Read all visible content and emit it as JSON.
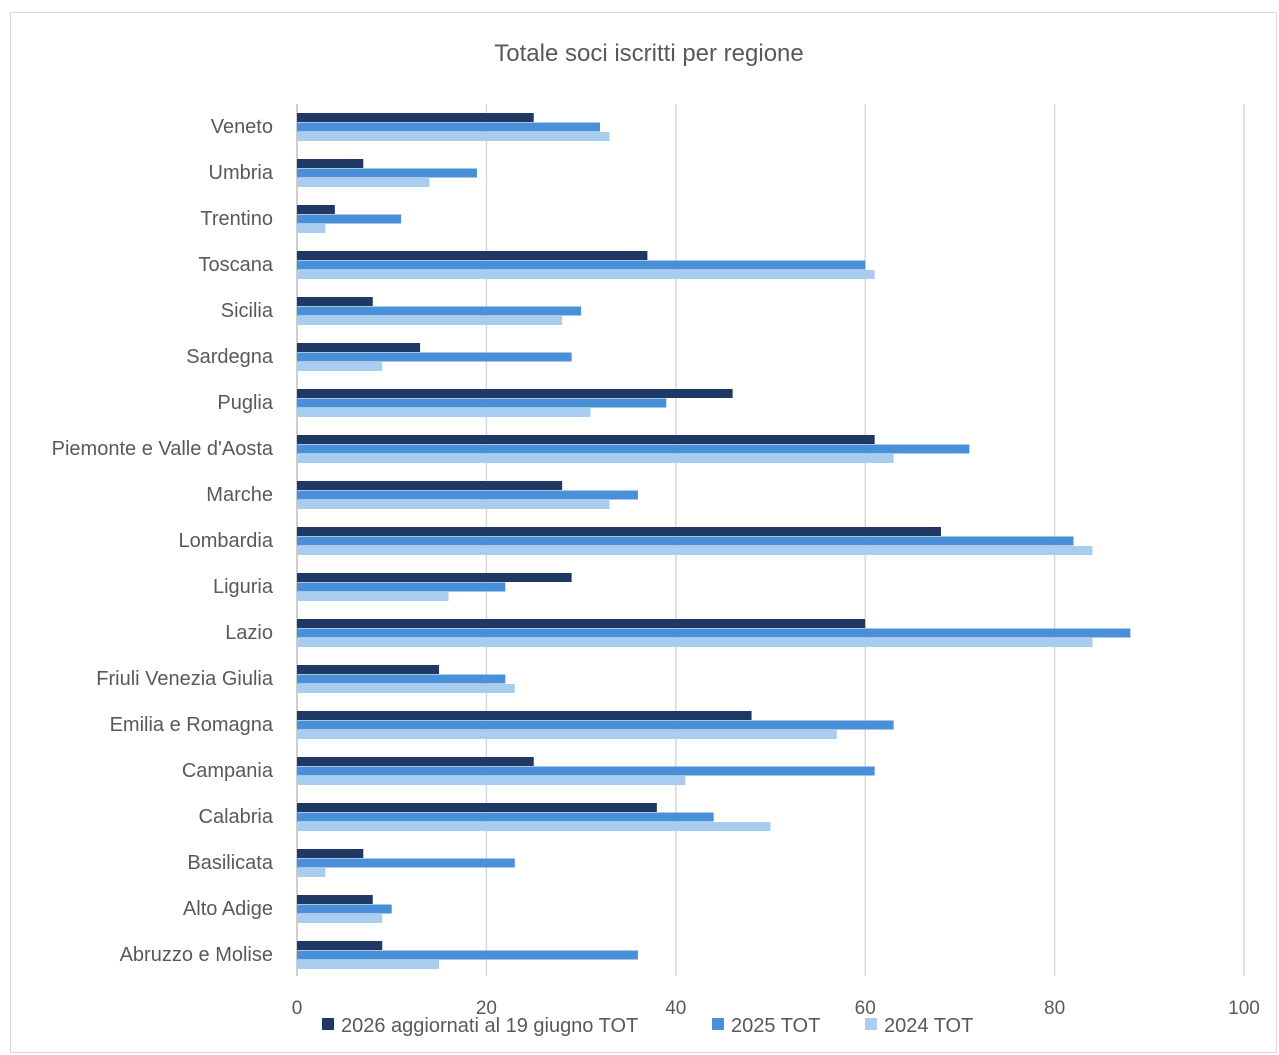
{
  "chart_data": {
    "type": "bar",
    "orientation": "horizontal",
    "title": "Totale soci iscritti per regione",
    "xlabel": "",
    "ylabel": "",
    "xlim": [
      0,
      100
    ],
    "xticks": [
      "0",
      "20",
      "40",
      "60",
      "80",
      "100"
    ],
    "grid": true,
    "legend_position": "bottom",
    "categories": [
      "Veneto",
      "Umbria",
      "Trentino",
      "Toscana",
      "Sicilia",
      "Sardegna",
      "Puglia",
      "Piemonte e Valle d'Aosta",
      "Marche",
      "Lombardia",
      "Liguria",
      "Lazio",
      "Friuli Venezia Giulia",
      "Emilia e Romagna",
      "Campania",
      "Calabria",
      "Basilicata",
      "Alto Adige",
      "Abruzzo e Molise"
    ],
    "series": [
      {
        "name": "2026 aggiornati al 19 giugno TOT",
        "color": "#1f3864",
        "values": [
          25,
          7,
          4,
          37,
          8,
          13,
          46,
          61,
          28,
          68,
          29,
          60,
          15,
          48,
          25,
          38,
          7,
          8,
          9
        ]
      },
      {
        "name": "2025 TOT",
        "color": "#4a90d9",
        "values": [
          32,
          19,
          11,
          60,
          30,
          29,
          39,
          71,
          36,
          82,
          22,
          88,
          22,
          63,
          61,
          44,
          23,
          10,
          36
        ]
      },
      {
        "name": "2024 TOT",
        "color": "#a9cdee",
        "values": [
          33,
          14,
          3,
          61,
          28,
          9,
          31,
          63,
          33,
          84,
          16,
          84,
          23,
          57,
          41,
          50,
          3,
          9,
          15
        ]
      }
    ]
  }
}
